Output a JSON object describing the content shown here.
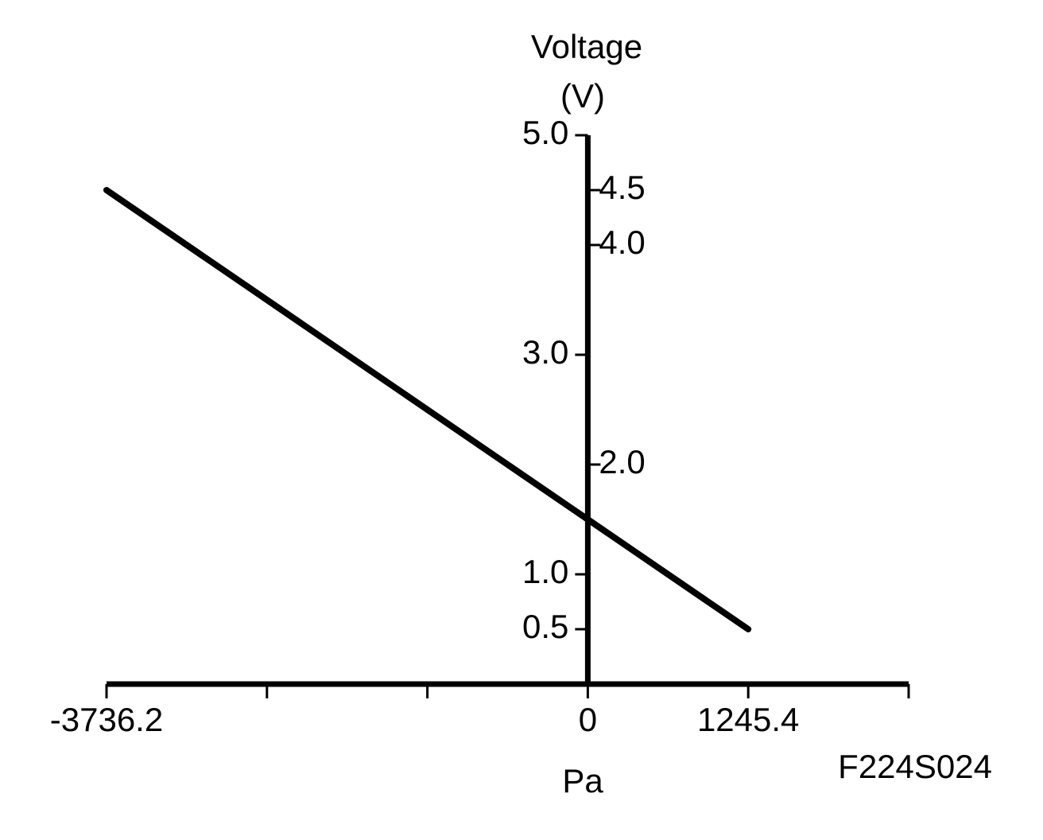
{
  "chart_data": {
    "type": "line",
    "ylabel": [
      "Voltage",
      "(V)"
    ],
    "xlabel": "Pa",
    "annotation": "F224S024",
    "x": [
      -3736.2,
      1245.4
    ],
    "series": [
      {
        "color": "#000000",
        "values": [
          4.5,
          0.5
        ]
      }
    ],
    "xlim": [
      -3736.2,
      2490.8
    ],
    "xticks": [
      -3736.2,
      {
        "value": -2490.8,
        "label": null
      },
      {
        "value": -1245.4,
        "label": null
      },
      0,
      1245.4,
      {
        "value": 2490.8,
        "label": null
      }
    ],
    "ylim": [
      0,
      5
    ],
    "yticks": [
      {
        "value": 5,
        "label": "5.0"
      },
      4.5,
      {
        "value": 4,
        "label": "4.0"
      },
      {
        "value": 3,
        "label": "3.0"
      },
      {
        "value": 2,
        "label": "2.0"
      },
      {
        "value": 1,
        "label": "1.0"
      },
      0.5
    ],
    "grid": false
  }
}
